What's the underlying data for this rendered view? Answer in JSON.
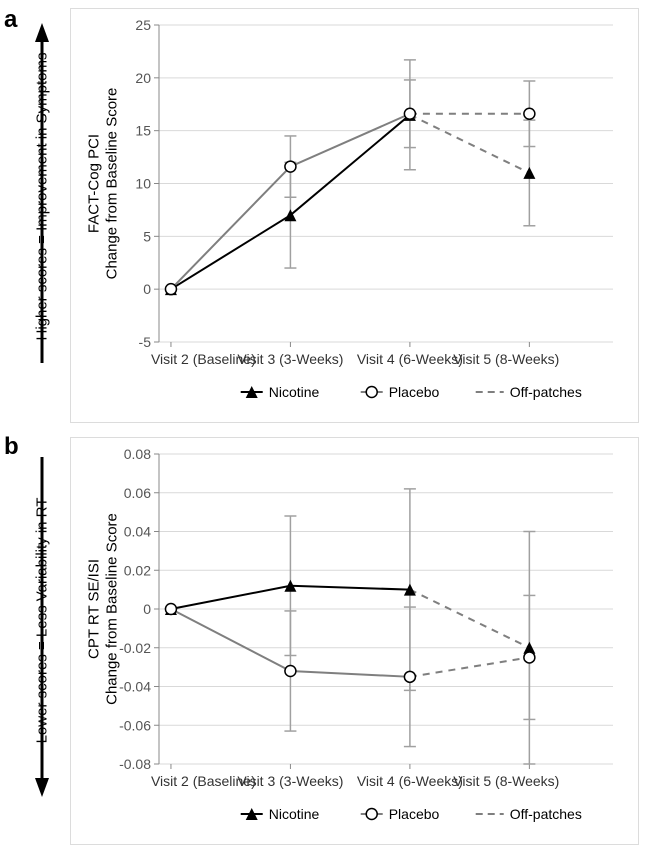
{
  "panelA": {
    "label": "a",
    "type": "line-error",
    "side_label": "Higher scores = Improvement in Symptoms",
    "side_label_fontsize": 15,
    "arrow_direction": "up",
    "y_axis_label_line1": "FACT-Cog PCI",
    "y_axis_label_line2": "Change from Baseline Score",
    "y_axis_fontsize": 15,
    "ylim": [
      -5,
      25
    ],
    "ytick_step": 5,
    "yticks": [
      -5,
      0,
      5,
      10,
      15,
      20,
      25
    ],
    "x_categories": [
      "Visit 2 (Baseline)",
      "Visit 3 (3-Weeks)",
      "Visit 4 (6-Weeks)",
      "Visit 5 (8-Weeks)"
    ],
    "x_positions": [
      0,
      1,
      2,
      3
    ],
    "series": {
      "nicotine": {
        "label": "Nicotine",
        "marker": "triangle-filled",
        "line_color": "#000000",
        "line_width": 2,
        "points": [
          {
            "y": 0,
            "err": 0
          },
          {
            "y": 7.0,
            "err": 5.0
          },
          {
            "y": 16.5,
            "err": 5.2
          },
          null
        ]
      },
      "placebo": {
        "label": "Placebo",
        "marker": "circle-open",
        "line_color": "#7f7f7f",
        "line_width": 2,
        "points": [
          {
            "y": 0,
            "err": 0
          },
          {
            "y": 11.6,
            "err": 2.9
          },
          {
            "y": 16.6,
            "err": 3.2
          },
          null
        ]
      },
      "off_nicotine": {
        "label": "Off-patches",
        "line_color": "#7f7f7f",
        "dash": true,
        "from": 2,
        "marker": "triangle-filled",
        "end": {
          "y": 11.0,
          "err": 5.0
        }
      },
      "off_placebo": {
        "line_color": "#7f7f7f",
        "dash": true,
        "from": 2,
        "marker": "circle-open",
        "end": {
          "y": 16.6,
          "err": 3.1
        }
      }
    },
    "legend": [
      "Nicotine",
      "Placebo",
      "Off-patches"
    ],
    "grid_color": "#d9d9d9",
    "tick_fontsize": 14,
    "background_color": "#ffffff"
  },
  "panelB": {
    "label": "b",
    "type": "line-error",
    "side_label": "Lower scores = Less Variability in RT",
    "side_label_fontsize": 15,
    "arrow_direction": "down",
    "y_axis_label_line1": "CPT RT SE/ISI",
    "y_axis_label_line2": "Change from Baseline Score",
    "y_axis_fontsize": 15,
    "ylim": [
      -0.08,
      0.08
    ],
    "ytick_step": 0.02,
    "yticks": [
      -0.08,
      -0.06,
      -0.04,
      -0.02,
      0,
      0.02,
      0.04,
      0.06,
      0.08
    ],
    "x_categories": [
      "Visit 2 (Baseline)",
      "Visit 3 (3-Weeks)",
      "Visit 4 (6-Weeks)",
      "Visit 5 (8-Weeks)"
    ],
    "x_positions": [
      0,
      1,
      2,
      3
    ],
    "series": {
      "nicotine": {
        "label": "Nicotine",
        "marker": "triangle-filled",
        "line_color": "#000000",
        "line_width": 2,
        "points": [
          {
            "y": 0,
            "err": 0
          },
          {
            "y": 0.012,
            "err": 0.036
          },
          {
            "y": 0.01,
            "err": 0.052
          },
          null
        ]
      },
      "placebo": {
        "label": "Placebo",
        "marker": "circle-open",
        "line_color": "#7f7f7f",
        "line_width": 2,
        "points": [
          {
            "y": 0,
            "err": 0
          },
          {
            "y": -0.032,
            "err": 0.031
          },
          {
            "y": -0.035,
            "err": 0.036
          },
          null
        ]
      },
      "off_nicotine": {
        "line_color": "#7f7f7f",
        "dash": true,
        "from": 2,
        "marker": "triangle-filled",
        "end": {
          "y": -0.02,
          "err": 0.06
        }
      },
      "off_placebo": {
        "line_color": "#7f7f7f",
        "dash": true,
        "from": 2,
        "marker": "circle-open",
        "end": {
          "y": -0.025,
          "err": 0.032
        }
      }
    },
    "legend": [
      "Nicotine",
      "Placebo",
      "Off-patches"
    ],
    "grid_color": "#d9d9d9",
    "tick_fontsize": 14,
    "background_color": "#ffffff"
  }
}
